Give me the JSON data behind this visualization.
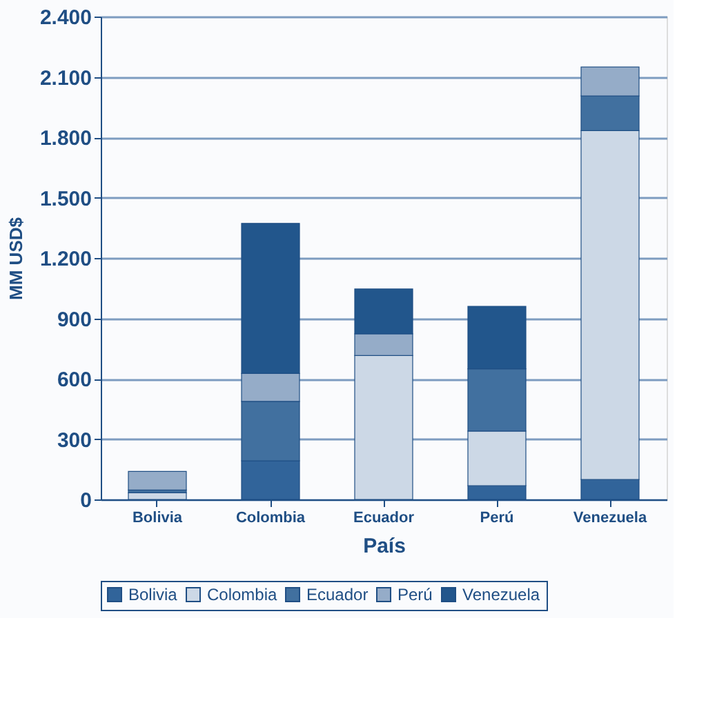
{
  "chart_data": {
    "type": "bar",
    "stacked": true,
    "xlabel": "País",
    "ylabel": "MM USD$",
    "categories": [
      "Bolivia",
      "Colombia",
      "Ecuador",
      "Perú",
      "Venezuela"
    ],
    "series": [
      {
        "name": "Bolivia",
        "color": "#31649a",
        "values": [
          null,
          192,
          null,
          68,
          99
        ]
      },
      {
        "name": "Colombia",
        "color": "#ccd8e6",
        "values": [
          33,
          null,
          715,
          272,
          1734
        ]
      },
      {
        "name": "Ecuador",
        "color": "#41709f",
        "values": [
          14,
          295,
          null,
          309,
          172
        ]
      },
      {
        "name": "Perú",
        "color": "#95acc8",
        "values": [
          92,
          139,
          108,
          null,
          144
        ]
      },
      {
        "name": "Venezuela",
        "color": "#22568c",
        "values": [
          null,
          746,
          223,
          311,
          null
        ]
      }
    ],
    "ylim": [
      0,
      2400
    ],
    "yticks": [
      {
        "value": 0,
        "label": "0"
      },
      {
        "value": 300,
        "label": "300"
      },
      {
        "value": 600,
        "label": "600"
      },
      {
        "value": 900,
        "label": "900"
      },
      {
        "value": 1200,
        "label": "1.200"
      },
      {
        "value": 1500,
        "label": "1.500"
      },
      {
        "value": 1800,
        "label": "1.800"
      },
      {
        "value": 2100,
        "label": "2.100"
      },
      {
        "value": 2400,
        "label": "2.400"
      }
    ],
    "grid": "y",
    "legend": "bottom"
  }
}
